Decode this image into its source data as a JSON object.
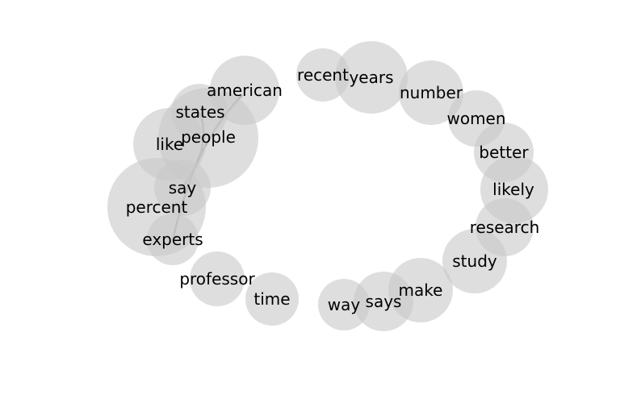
{
  "style": {
    "node_fill": "#c8c8c8",
    "node_opacity": 0.6,
    "edge_color": "#808080",
    "label_color": "#000000"
  },
  "words": [
    {
      "id": "american",
      "label": "american"
    },
    {
      "id": "states",
      "label": "states"
    },
    {
      "id": "like",
      "label": "like"
    },
    {
      "id": "people",
      "label": "people"
    },
    {
      "id": "say",
      "label": "say"
    },
    {
      "id": "percent",
      "label": "percent"
    },
    {
      "id": "experts",
      "label": "experts"
    },
    {
      "id": "professor",
      "label": "professor"
    },
    {
      "id": "time",
      "label": "time"
    },
    {
      "id": "way",
      "label": "way"
    },
    {
      "id": "says",
      "label": "says"
    },
    {
      "id": "make",
      "label": "make"
    },
    {
      "id": "study",
      "label": "study"
    },
    {
      "id": "research",
      "label": "research"
    },
    {
      "id": "likely",
      "label": "likely"
    },
    {
      "id": "better",
      "label": "better"
    },
    {
      "id": "women",
      "label": "women"
    },
    {
      "id": "number",
      "label": "number"
    },
    {
      "id": "years",
      "label": "years"
    },
    {
      "id": "recent",
      "label": "recent"
    }
  ],
  "links": [
    {
      "source": "american",
      "target": "experts"
    },
    {
      "source": "states",
      "target": "say"
    }
  ]
}
